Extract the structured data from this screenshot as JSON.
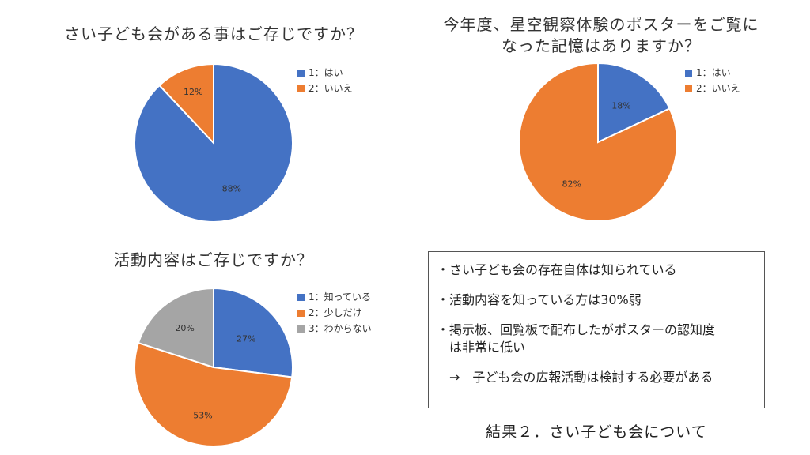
{
  "colors": {
    "blue": "#4472C4",
    "orange": "#ED7D31",
    "gray": "#A5A5A5"
  },
  "chart_data": [
    {
      "type": "pie",
      "title": "さい子ども会がある事はご存じですか？",
      "categories": [
        "1：はい",
        "2：いいえ"
      ],
      "values": [
        88,
        12
      ],
      "labels": [
        "88%",
        "12%"
      ],
      "colors": [
        "#4472C4",
        "#ED7D31"
      ],
      "legend": "right"
    },
    {
      "type": "pie",
      "title": "今年度、星空観察体験のポスターをご覧に",
      "title_line2": "なった記憶はありますか？",
      "categories": [
        "1：はい",
        "2：いいえ"
      ],
      "values": [
        18,
        82
      ],
      "labels": [
        "18%",
        "82%"
      ],
      "colors": [
        "#4472C4",
        "#ED7D31"
      ],
      "legend": "right"
    },
    {
      "type": "pie",
      "title": "活動内容はご存じですか？",
      "categories": [
        "1：知っている",
        "2：少しだけ",
        "3：わからない"
      ],
      "values": [
        27,
        53,
        20
      ],
      "labels": [
        "27%",
        "53%",
        "20%"
      ],
      "colors": [
        "#4472C4",
        "#ED7D31",
        "#A5A5A5"
      ],
      "legend": "right"
    }
  ],
  "summary": {
    "lines": [
      "・さい子ども会の存在自体は知られている",
      "・活動内容を知っている方は30%弱",
      "・掲示板、回覧板で配布したがポスターの認知度",
      "　は非常に低い",
      "　→　子ども会の広報活動は検討する必要がある"
    ]
  },
  "caption": "結果２．さい子ども会について"
}
